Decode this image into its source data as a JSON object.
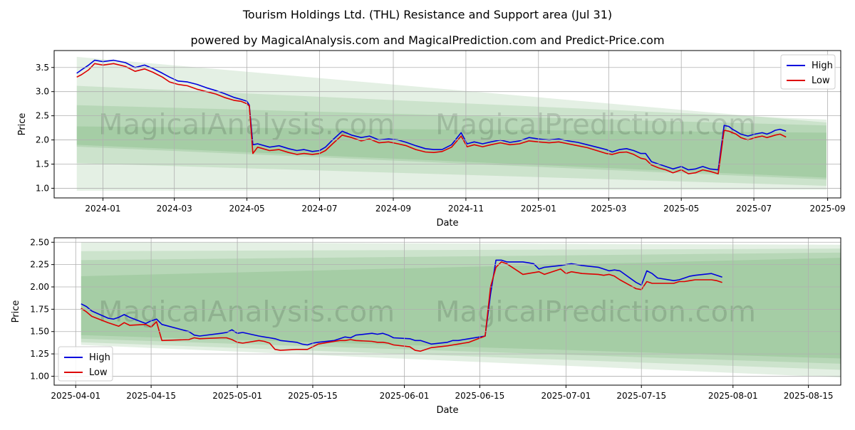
{
  "title": "Tourism Holdings Ltd. (THL) Resistance and Support area (Jul 31)",
  "subtitle": "powered by MagicalAnalysis.com and MagicalPrediction.com and Predict-Price.com",
  "watermark": {
    "text1": "MagicalAnalysis.com",
    "text2": "MagicalPrediction.com"
  },
  "colors": {
    "high": "#0000dd",
    "low": "#dd0000",
    "band": "#2e8b2e",
    "grid": "#b0b0b0"
  },
  "chart_data": [
    {
      "type": "line",
      "name": "top",
      "xlabel": "Date",
      "ylabel": "Price",
      "xlim": [
        "2023-11-21",
        "2025-09-12"
      ],
      "ylim": [
        0.8,
        3.85
      ],
      "xticks": [
        "2024-01",
        "2024-03",
        "2024-05",
        "2024-07",
        "2024-09",
        "2024-11",
        "2025-01",
        "2025-03",
        "2025-05",
        "2025-07",
        "2025-09"
      ],
      "xtick_dates": [
        "2024-01-01",
        "2024-03-01",
        "2024-05-01",
        "2024-07-01",
        "2024-09-01",
        "2024-11-01",
        "2025-01-01",
        "2025-03-01",
        "2025-05-01",
        "2025-07-01",
        "2025-09-01"
      ],
      "yticks": [
        "1.0",
        "1.5",
        "2.0",
        "2.5",
        "3.0",
        "3.5"
      ],
      "ytick_values": [
        1.0,
        1.5,
        2.0,
        2.5,
        3.0,
        3.5
      ],
      "legend": {
        "position": "upper-right",
        "entries": [
          "High",
          "Low"
        ]
      },
      "bands": [
        {
          "x0": "2023-12-10",
          "x1": "2025-08-31",
          "lo0": 0.95,
          "lo1": 0.97,
          "hi0": 3.72,
          "hi1": 2.36
        },
        {
          "x0": "2023-12-10",
          "x1": "2025-08-31",
          "lo0": 1.52,
          "lo1": 1.05,
          "hi0": 3.12,
          "hi1": 2.42
        },
        {
          "x0": "2023-12-10",
          "x1": "2025-08-31",
          "lo0": 1.86,
          "lo1": 1.18,
          "hi0": 2.72,
          "hi1": 2.3
        },
        {
          "x0": "2023-12-10",
          "x1": "2025-08-31",
          "lo0": 1.9,
          "lo1": 1.22,
          "hi0": 2.28,
          "hi1": 2.15
        }
      ],
      "series": [
        {
          "name": "High",
          "x": [
            "2023-12-10",
            "2023-12-14",
            "2023-12-20",
            "2023-12-25",
            "2024-01-01",
            "2024-01-10",
            "2024-01-20",
            "2024-01-28",
            "2024-02-05",
            "2024-02-12",
            "2024-02-20",
            "2024-02-26",
            "2024-03-04",
            "2024-03-12",
            "2024-03-20",
            "2024-03-28",
            "2024-04-05",
            "2024-04-12",
            "2024-04-20",
            "2024-04-26",
            "2024-05-01",
            "2024-05-03",
            "2024-05-06",
            "2024-05-10",
            "2024-05-20",
            "2024-05-28",
            "2024-06-05",
            "2024-06-12",
            "2024-06-18",
            "2024-06-25",
            "2024-07-01",
            "2024-07-06",
            "2024-07-12",
            "2024-07-20",
            "2024-07-28",
            "2024-08-05",
            "2024-08-12",
            "2024-08-20",
            "2024-08-28",
            "2024-09-05",
            "2024-09-12",
            "2024-09-20",
            "2024-09-28",
            "2024-10-05",
            "2024-10-12",
            "2024-10-20",
            "2024-10-28",
            "2024-11-02",
            "2024-11-08",
            "2024-11-15",
            "2024-11-22",
            "2024-11-30",
            "2024-12-08",
            "2024-12-16",
            "2024-12-24",
            "2025-01-01",
            "2025-01-10",
            "2025-01-18",
            "2025-01-26",
            "2025-02-03",
            "2025-02-11",
            "2025-02-19",
            "2025-02-27",
            "2025-03-04",
            "2025-03-10",
            "2025-03-16",
            "2025-03-22",
            "2025-03-28",
            "2025-04-01",
            "2025-04-06",
            "2025-04-12",
            "2025-04-18",
            "2025-04-24",
            "2025-05-01",
            "2025-05-07",
            "2025-05-13",
            "2025-05-19",
            "2025-05-25",
            "2025-06-01",
            "2025-06-06",
            "2025-06-10",
            "2025-06-13",
            "2025-06-16",
            "2025-06-20",
            "2025-06-26",
            "2025-07-02",
            "2025-07-08",
            "2025-07-12",
            "2025-07-15",
            "2025-07-19",
            "2025-07-23",
            "2025-07-28"
          ],
          "values": [
            3.38,
            3.45,
            3.55,
            3.65,
            3.62,
            3.65,
            3.6,
            3.5,
            3.55,
            3.48,
            3.38,
            3.3,
            3.22,
            3.2,
            3.15,
            3.08,
            3.02,
            2.96,
            2.88,
            2.84,
            2.8,
            2.72,
            1.9,
            1.92,
            1.85,
            1.88,
            1.82,
            1.78,
            1.8,
            1.76,
            1.78,
            1.85,
            2.0,
            2.18,
            2.1,
            2.05,
            2.08,
            2.0,
            2.02,
            2.0,
            1.95,
            1.88,
            1.82,
            1.8,
            1.8,
            1.9,
            2.15,
            1.92,
            1.96,
            1.92,
            1.96,
            2.0,
            1.95,
            1.98,
            2.05,
            2.02,
            2.0,
            2.02,
            1.98,
            1.95,
            1.9,
            1.85,
            1.8,
            1.75,
            1.8,
            1.82,
            1.78,
            1.72,
            1.72,
            1.55,
            1.5,
            1.45,
            1.4,
            1.45,
            1.38,
            1.4,
            1.45,
            1.4,
            1.38,
            2.3,
            2.28,
            2.22,
            2.18,
            2.12,
            2.08,
            2.12,
            2.15,
            2.12,
            2.15,
            2.2,
            2.22,
            2.18
          ]
        },
        {
          "name": "Low",
          "x": [
            "2023-12-10",
            "2023-12-14",
            "2023-12-20",
            "2023-12-25",
            "2024-01-01",
            "2024-01-10",
            "2024-01-20",
            "2024-01-28",
            "2024-02-05",
            "2024-02-12",
            "2024-02-20",
            "2024-02-26",
            "2024-03-04",
            "2024-03-12",
            "2024-03-20",
            "2024-03-28",
            "2024-04-05",
            "2024-04-12",
            "2024-04-20",
            "2024-04-26",
            "2024-05-01",
            "2024-05-03",
            "2024-05-06",
            "2024-05-10",
            "2024-05-20",
            "2024-05-28",
            "2024-06-05",
            "2024-06-12",
            "2024-06-18",
            "2024-06-25",
            "2024-07-01",
            "2024-07-06",
            "2024-07-12",
            "2024-07-20",
            "2024-07-28",
            "2024-08-05",
            "2024-08-12",
            "2024-08-20",
            "2024-08-28",
            "2024-09-05",
            "2024-09-12",
            "2024-09-20",
            "2024-09-28",
            "2024-10-05",
            "2024-10-12",
            "2024-10-20",
            "2024-10-28",
            "2024-11-02",
            "2024-11-08",
            "2024-11-15",
            "2024-11-22",
            "2024-11-30",
            "2024-12-08",
            "2024-12-16",
            "2024-12-24",
            "2025-01-01",
            "2025-01-10",
            "2025-01-18",
            "2025-01-26",
            "2025-02-03",
            "2025-02-11",
            "2025-02-19",
            "2025-02-27",
            "2025-03-04",
            "2025-03-10",
            "2025-03-16",
            "2025-03-22",
            "2025-03-28",
            "2025-04-01",
            "2025-04-06",
            "2025-04-12",
            "2025-04-18",
            "2025-04-24",
            "2025-05-01",
            "2025-05-07",
            "2025-05-13",
            "2025-05-19",
            "2025-05-25",
            "2025-06-01",
            "2025-06-06",
            "2025-06-10",
            "2025-06-13",
            "2025-06-16",
            "2025-06-20",
            "2025-06-26",
            "2025-07-02",
            "2025-07-08",
            "2025-07-12",
            "2025-07-15",
            "2025-07-19",
            "2025-07-23",
            "2025-07-28"
          ],
          "values": [
            3.3,
            3.35,
            3.45,
            3.58,
            3.55,
            3.58,
            3.52,
            3.42,
            3.47,
            3.4,
            3.3,
            3.2,
            3.15,
            3.12,
            3.05,
            3.0,
            2.95,
            2.88,
            2.82,
            2.8,
            2.75,
            2.7,
            1.72,
            1.85,
            1.78,
            1.8,
            1.74,
            1.7,
            1.72,
            1.7,
            1.72,
            1.78,
            1.92,
            2.1,
            2.05,
            1.98,
            2.02,
            1.94,
            1.96,
            1.92,
            1.88,
            1.8,
            1.75,
            1.74,
            1.76,
            1.85,
            2.08,
            1.86,
            1.9,
            1.86,
            1.9,
            1.94,
            1.9,
            1.92,
            1.98,
            1.96,
            1.94,
            1.96,
            1.92,
            1.88,
            1.84,
            1.78,
            1.72,
            1.7,
            1.74,
            1.75,
            1.7,
            1.62,
            1.6,
            1.48,
            1.42,
            1.38,
            1.32,
            1.38,
            1.3,
            1.32,
            1.38,
            1.35,
            1.3,
            2.2,
            2.18,
            2.15,
            2.12,
            2.05,
            2.0,
            2.05,
            2.08,
            2.05,
            2.07,
            2.1,
            2.12,
            2.06
          ]
        }
      ]
    },
    {
      "type": "line",
      "name": "bottom",
      "xlabel": "Date",
      "ylabel": "Price",
      "xlim": [
        "2025-03-28",
        "2025-08-21"
      ],
      "ylim": [
        0.9,
        2.55
      ],
      "xticks": [
        "2025-04-01",
        "2025-04-15",
        "2025-05-01",
        "2025-05-15",
        "2025-06-01",
        "2025-06-15",
        "2025-07-01",
        "2025-07-15",
        "2025-08-01",
        "2025-08-15"
      ],
      "xtick_dates": [
        "2025-04-01",
        "2025-04-15",
        "2025-05-01",
        "2025-05-15",
        "2025-06-01",
        "2025-06-15",
        "2025-07-01",
        "2025-07-15",
        "2025-08-01",
        "2025-08-15"
      ],
      "yticks": [
        "1.00",
        "1.25",
        "1.50",
        "1.75",
        "2.00",
        "2.25",
        "2.50"
      ],
      "ytick_values": [
        1.0,
        1.25,
        1.5,
        1.75,
        2.0,
        2.25,
        2.5
      ],
      "legend": {
        "position": "lower-left",
        "entries": [
          "High",
          "Low"
        ]
      },
      "bands": [
        {
          "x0": "2025-04-02",
          "x1": "2025-08-31",
          "lo0": 1.35,
          "lo1": 0.96,
          "hi0": 2.5,
          "hi1": 2.47
        },
        {
          "x0": "2025-04-02",
          "x1": "2025-08-31",
          "lo0": 1.38,
          "lo1": 1.05,
          "hi0": 2.4,
          "hi1": 2.43
        },
        {
          "x0": "2025-04-02",
          "x1": "2025-08-31",
          "lo0": 1.42,
          "lo1": 1.12,
          "hi0": 2.3,
          "hi1": 2.39
        },
        {
          "x0": "2025-04-02",
          "x1": "2025-08-31",
          "lo0": 1.46,
          "lo1": 1.18,
          "hi0": 2.12,
          "hi1": 2.34
        }
      ],
      "series": [
        {
          "name": "High",
          "x": [
            "2025-04-02",
            "2025-04-03",
            "2025-04-04",
            "2025-04-07",
            "2025-04-08",
            "2025-04-09",
            "2025-04-10",
            "2025-04-11",
            "2025-04-14",
            "2025-04-15",
            "2025-04-16",
            "2025-04-17",
            "2025-04-22",
            "2025-04-23",
            "2025-04-24",
            "2025-04-28",
            "2025-04-29",
            "2025-04-30",
            "2025-05-01",
            "2025-05-02",
            "2025-05-05",
            "2025-05-06",
            "2025-05-07",
            "2025-05-08",
            "2025-05-09",
            "2025-05-12",
            "2025-05-13",
            "2025-05-14",
            "2025-05-15",
            "2025-05-16",
            "2025-05-19",
            "2025-05-20",
            "2025-05-21",
            "2025-05-22",
            "2025-05-23",
            "2025-05-26",
            "2025-05-27",
            "2025-05-28",
            "2025-05-29",
            "2025-05-30",
            "2025-06-02",
            "2025-06-03",
            "2025-06-04",
            "2025-06-05",
            "2025-06-06",
            "2025-06-09",
            "2025-06-10",
            "2025-06-11",
            "2025-06-12",
            "2025-06-13",
            "2025-06-16",
            "2025-06-17",
            "2025-06-18",
            "2025-06-19",
            "2025-06-20",
            "2025-06-23",
            "2025-06-24",
            "2025-06-25",
            "2025-06-26",
            "2025-06-27",
            "2025-06-30",
            "2025-07-01",
            "2025-07-02",
            "2025-07-03",
            "2025-07-04",
            "2025-07-07",
            "2025-07-08",
            "2025-07-09",
            "2025-07-10",
            "2025-07-11",
            "2025-07-14",
            "2025-07-15",
            "2025-07-16",
            "2025-07-17",
            "2025-07-18",
            "2025-07-21",
            "2025-07-22",
            "2025-07-23",
            "2025-07-24",
            "2025-07-25",
            "2025-07-28",
            "2025-07-29",
            "2025-07-30"
          ],
          "values": [
            1.81,
            1.78,
            1.73,
            1.65,
            1.64,
            1.66,
            1.69,
            1.66,
            1.59,
            1.62,
            1.64,
            1.58,
            1.5,
            1.46,
            1.45,
            1.48,
            1.49,
            1.52,
            1.48,
            1.49,
            1.45,
            1.44,
            1.43,
            1.42,
            1.4,
            1.38,
            1.36,
            1.35,
            1.37,
            1.38,
            1.4,
            1.42,
            1.44,
            1.43,
            1.46,
            1.48,
            1.47,
            1.48,
            1.46,
            1.43,
            1.42,
            1.4,
            1.4,
            1.38,
            1.36,
            1.38,
            1.4,
            1.4,
            1.41,
            1.42,
            1.45,
            1.92,
            2.3,
            2.3,
            2.28,
            2.28,
            2.27,
            2.26,
            2.2,
            2.22,
            2.24,
            2.25,
            2.26,
            2.25,
            2.24,
            2.22,
            2.2,
            2.18,
            2.19,
            2.18,
            2.05,
            2.02,
            2.18,
            2.15,
            2.1,
            2.07,
            2.08,
            2.1,
            2.12,
            2.13,
            2.15,
            2.13,
            2.11
          ]
        },
        {
          "name": "Low",
          "x": [
            "2025-04-02",
            "2025-04-03",
            "2025-04-04",
            "2025-04-07",
            "2025-04-08",
            "2025-04-09",
            "2025-04-10",
            "2025-04-11",
            "2025-04-14",
            "2025-04-15",
            "2025-04-16",
            "2025-04-17",
            "2025-04-22",
            "2025-04-23",
            "2025-04-24",
            "2025-04-28",
            "2025-04-29",
            "2025-04-30",
            "2025-05-01",
            "2025-05-02",
            "2025-05-05",
            "2025-05-06",
            "2025-05-07",
            "2025-05-08",
            "2025-05-09",
            "2025-05-12",
            "2025-05-13",
            "2025-05-14",
            "2025-05-15",
            "2025-05-16",
            "2025-05-19",
            "2025-05-20",
            "2025-05-21",
            "2025-05-22",
            "2025-05-23",
            "2025-05-26",
            "2025-05-27",
            "2025-05-28",
            "2025-05-29",
            "2025-05-30",
            "2025-06-02",
            "2025-06-03",
            "2025-06-04",
            "2025-06-05",
            "2025-06-06",
            "2025-06-09",
            "2025-06-10",
            "2025-06-11",
            "2025-06-12",
            "2025-06-13",
            "2025-06-16",
            "2025-06-17",
            "2025-06-18",
            "2025-06-19",
            "2025-06-20",
            "2025-06-23",
            "2025-06-24",
            "2025-06-25",
            "2025-06-26",
            "2025-06-27",
            "2025-06-30",
            "2025-07-01",
            "2025-07-02",
            "2025-07-03",
            "2025-07-04",
            "2025-07-07",
            "2025-07-08",
            "2025-07-09",
            "2025-07-10",
            "2025-07-11",
            "2025-07-14",
            "2025-07-15",
            "2025-07-16",
            "2025-07-17",
            "2025-07-18",
            "2025-07-21",
            "2025-07-22",
            "2025-07-23",
            "2025-07-24",
            "2025-07-25",
            "2025-07-28",
            "2025-07-29",
            "2025-07-30"
          ],
          "values": [
            1.76,
            1.72,
            1.67,
            1.6,
            1.58,
            1.56,
            1.6,
            1.57,
            1.58,
            1.55,
            1.61,
            1.4,
            1.41,
            1.43,
            1.42,
            1.43,
            1.43,
            1.41,
            1.38,
            1.37,
            1.4,
            1.39,
            1.37,
            1.3,
            1.29,
            1.3,
            1.3,
            1.3,
            1.33,
            1.36,
            1.39,
            1.4,
            1.4,
            1.41,
            1.4,
            1.39,
            1.38,
            1.38,
            1.37,
            1.35,
            1.33,
            1.29,
            1.28,
            1.3,
            1.32,
            1.34,
            1.35,
            1.36,
            1.37,
            1.38,
            1.45,
            2.0,
            2.22,
            2.28,
            2.26,
            2.14,
            2.15,
            2.16,
            2.17,
            2.14,
            2.2,
            2.15,
            2.17,
            2.16,
            2.15,
            2.14,
            2.13,
            2.14,
            2.12,
            2.08,
            1.98,
            1.97,
            2.06,
            2.04,
            2.04,
            2.04,
            2.06,
            2.06,
            2.07,
            2.08,
            2.08,
            2.07,
            2.05
          ]
        }
      ]
    }
  ]
}
